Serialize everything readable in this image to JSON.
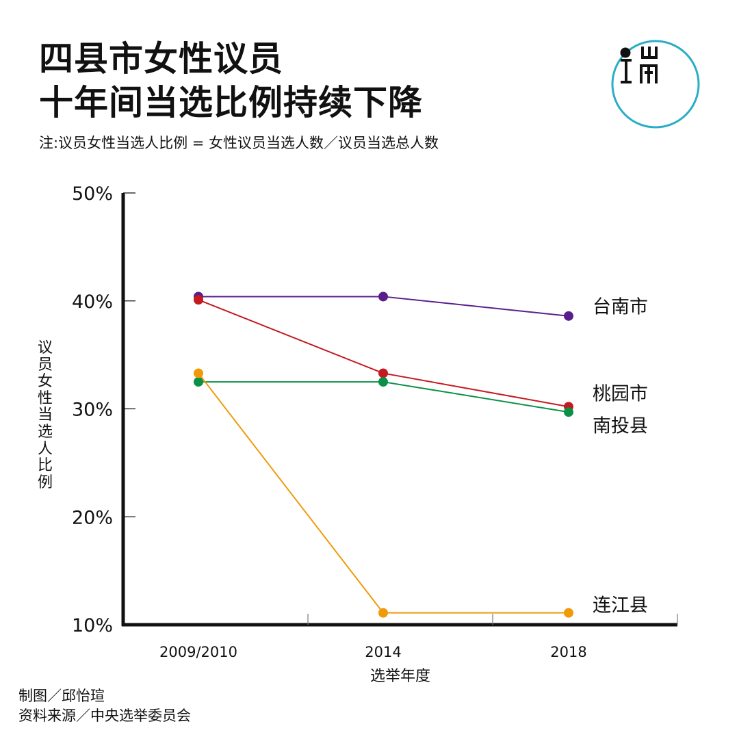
{
  "title_lines": [
    "四县市女性议员",
    "十年间当选比例持续下降"
  ],
  "note": "注:议员女性当选人比例 = 女性议员当选人数／议员当选总人数",
  "logo_icon": "端-media-logo-icon",
  "credits": {
    "chart_by": "制图／邱怡瑄",
    "source": "资料来源／中央选举委员会"
  },
  "chart_data": {
    "type": "line",
    "title": "四县市女性议员十年间当选比例持续下降",
    "xlabel": "选举年度",
    "ylabel": "议员女性当选人比例",
    "categories": [
      "2009/2010",
      "2014",
      "2018"
    ],
    "ylim": [
      10,
      50
    ],
    "yticks": [
      10,
      20,
      30,
      40,
      50
    ],
    "ytick_labels": [
      "10%",
      "20%",
      "30%",
      "40%",
      "50%"
    ],
    "grid": false,
    "legend": "direct labels at line ends",
    "series": [
      {
        "name": "台南市",
        "color": "#5a1e8c",
        "values": [
          40.4,
          40.4,
          38.6
        ]
      },
      {
        "name": "桃园市",
        "color": "#c41a20",
        "values": [
          40.1,
          33.3,
          30.2
        ]
      },
      {
        "name": "南投县",
        "color": "#0a9146",
        "values": [
          32.5,
          32.5,
          29.7
        ]
      },
      {
        "name": "连江县",
        "color": "#f09a0a",
        "values": [
          33.3,
          11.1,
          11.1
        ]
      }
    ]
  }
}
